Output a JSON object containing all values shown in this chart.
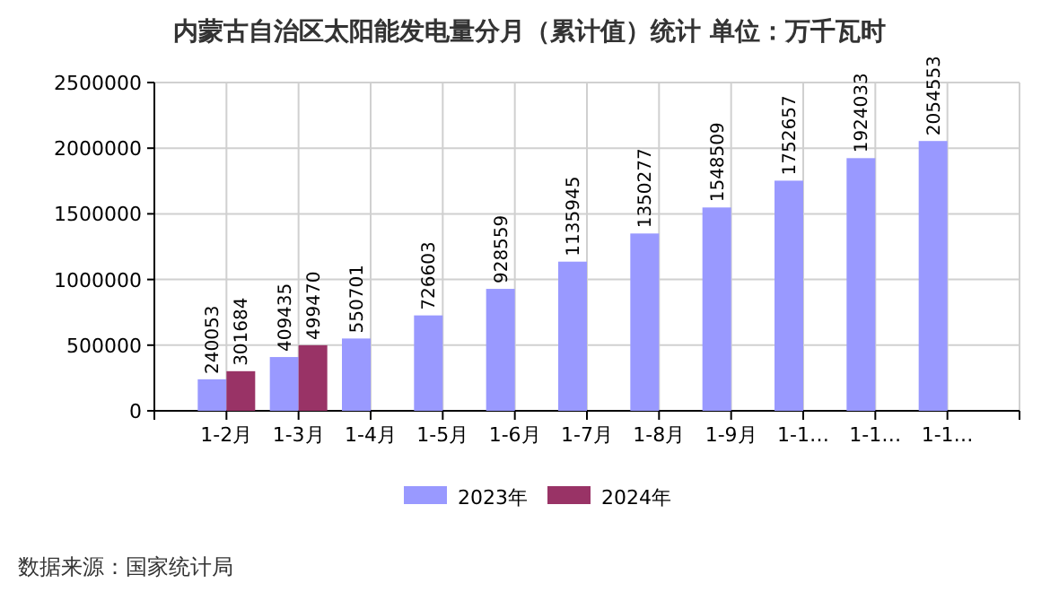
{
  "chart_data": {
    "type": "bar",
    "title": "内蒙古自治区太阳能发电量分月（累计值）统计  单位：万千瓦时",
    "categories": [
      "1-2月",
      "1-3月",
      "1-4月",
      "1-5月",
      "1-6月",
      "1-7月",
      "1-8月",
      "1-9月",
      "1-1…",
      "1-1…",
      "1-1…"
    ],
    "series": [
      {
        "name": "2023年",
        "color": "#9999ff",
        "values": [
          240053,
          409435,
          550701,
          726603,
          928559,
          1135945,
          1350277,
          1548509,
          1752657,
          1924033,
          2054553
        ]
      },
      {
        "name": "2024年",
        "color": "#993366",
        "values": [
          301684,
          499470,
          null,
          null,
          null,
          null,
          null,
          null,
          null,
          null,
          null
        ]
      }
    ],
    "ylim": [
      0,
      2500000
    ],
    "yticks": [
      0,
      500000,
      1000000,
      1500000,
      2000000,
      2500000
    ],
    "grid": true,
    "legend": "bottom",
    "data_labels": true,
    "annotations": [
      "数据来源：国家统计局"
    ]
  }
}
